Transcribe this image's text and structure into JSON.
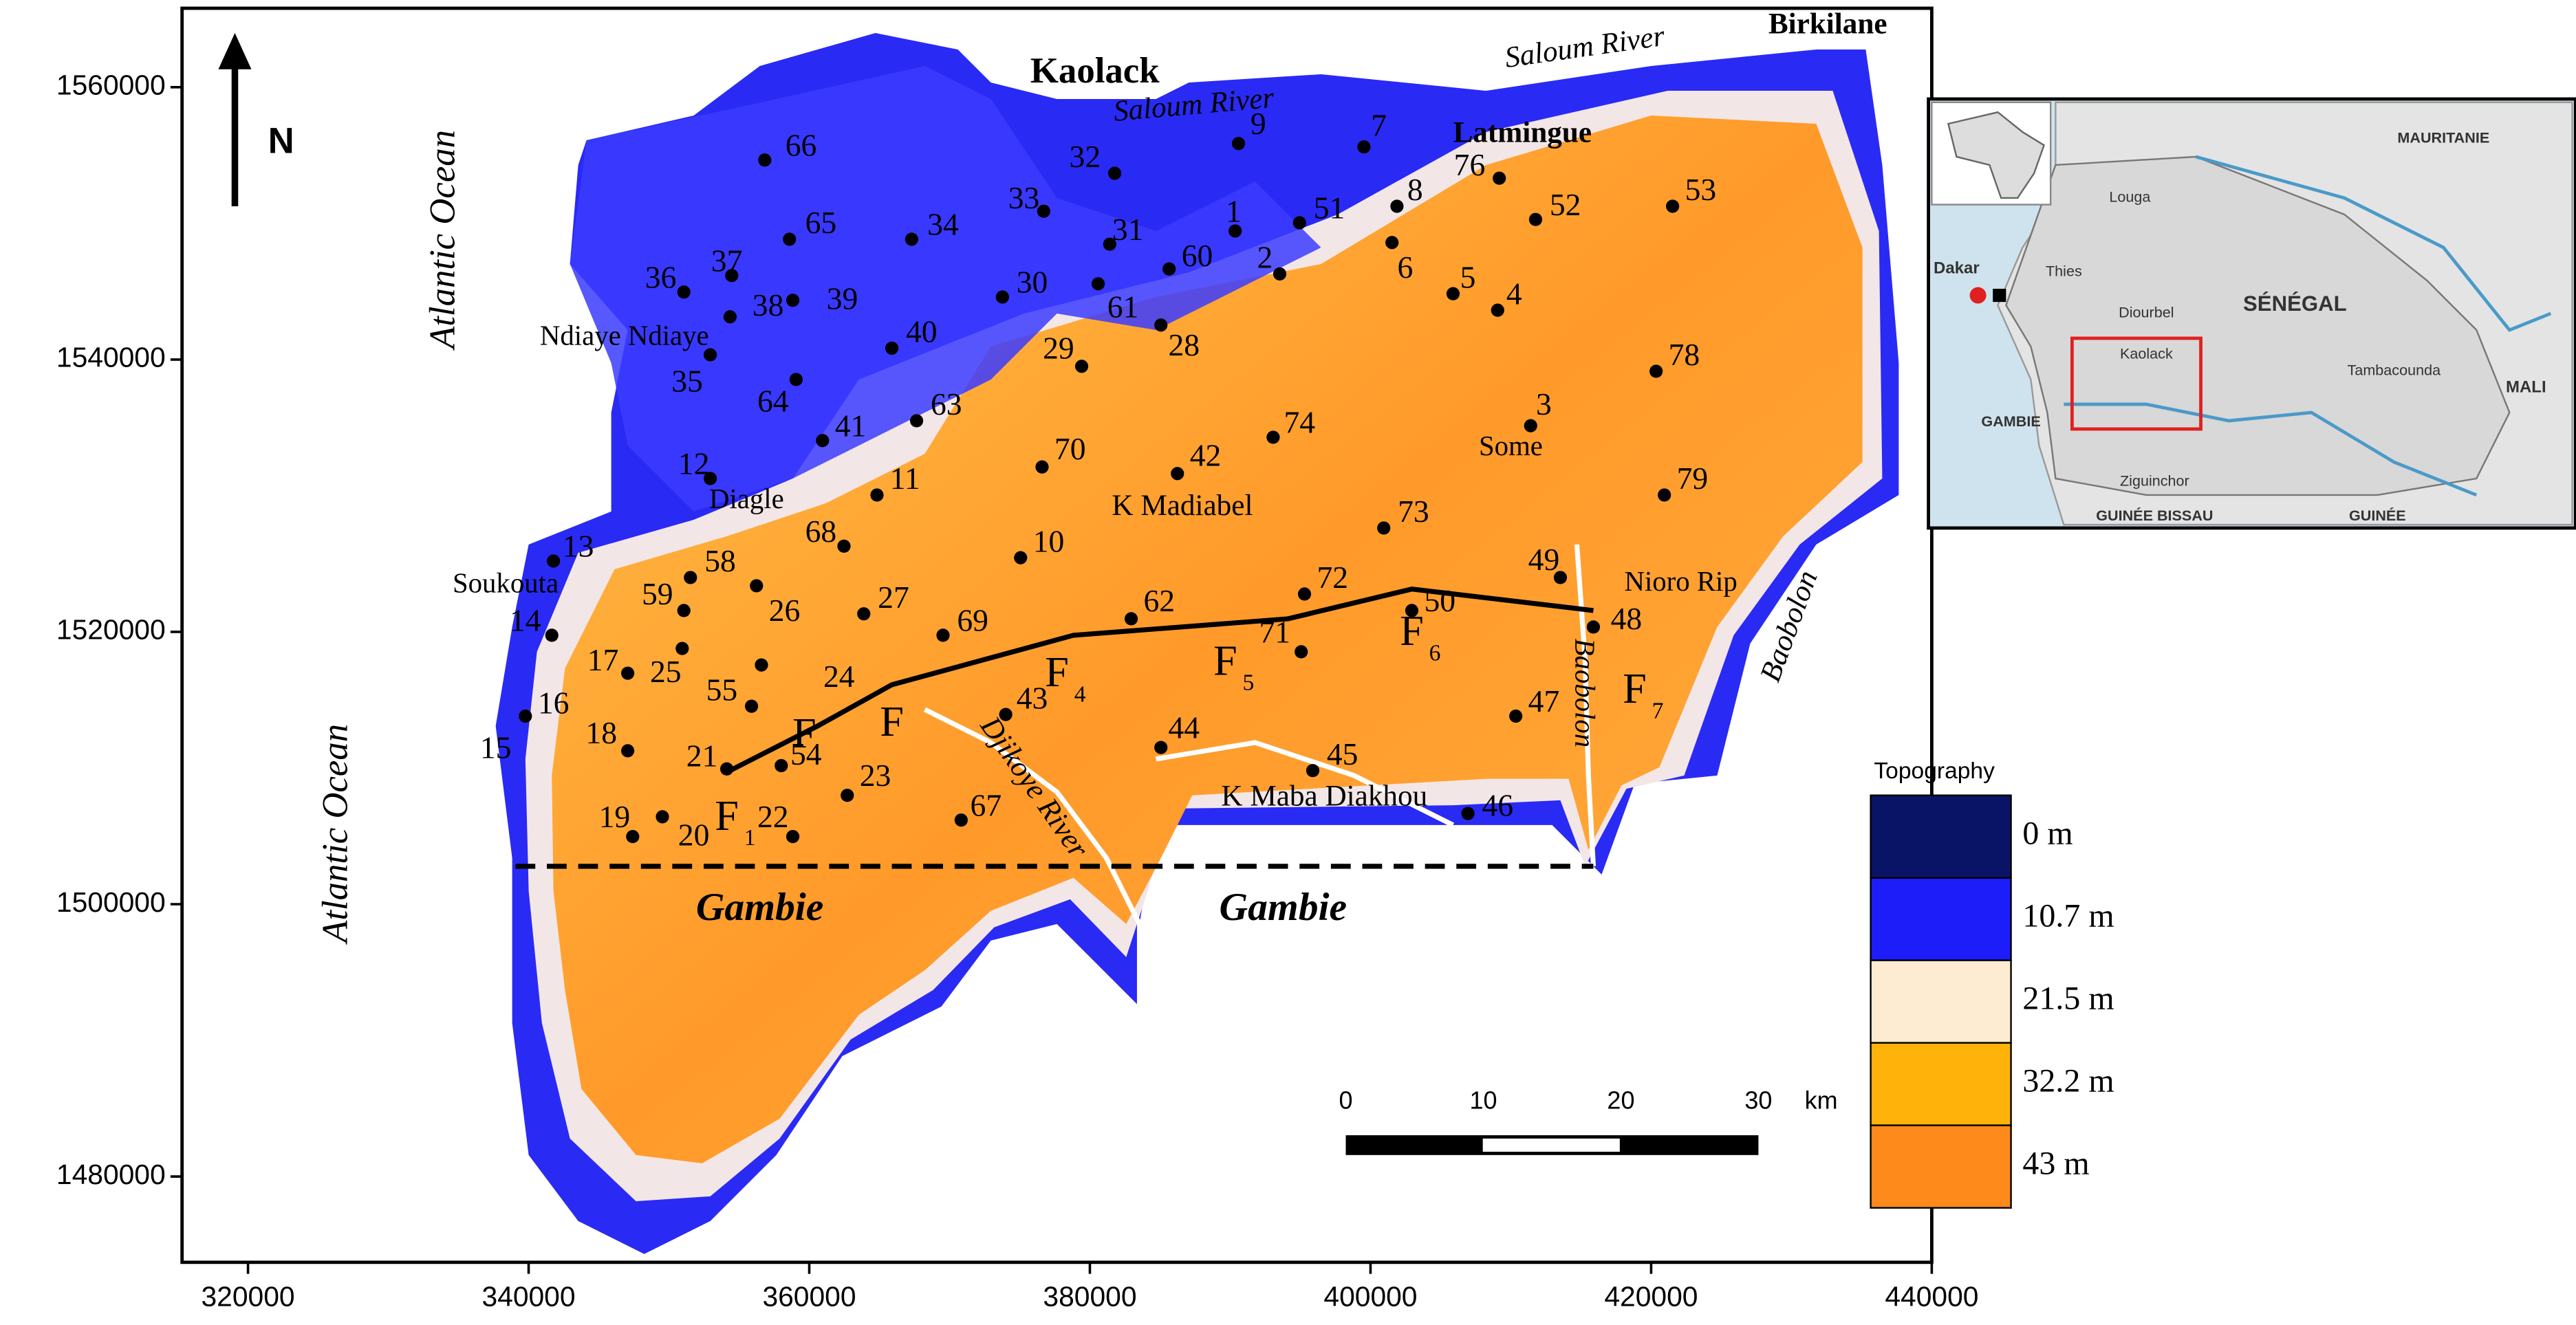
{
  "map": {
    "xlim": [
      315300,
      440000
    ],
    "ylim": [
      1473700,
      1565800
    ],
    "xticks": [
      320000,
      340000,
      360000,
      380000,
      400000,
      420000,
      440000
    ],
    "yticks": [
      1480000,
      1500000,
      1520000,
      1540000,
      1560000
    ],
    "north": "N",
    "places": [
      "Kaolack",
      "Saloum River",
      "Saloum River",
      "Birkilane",
      "Latmingue",
      "Ndiaye Ndiaye",
      "Some",
      "K Madiabel",
      "Diagle",
      "Soukouta",
      "Nioro Rip",
      "Baobolon",
      "Baobolon",
      "K Maba Diakhou",
      "Gambie",
      "Gambie",
      "Djikoye River",
      "Atlantic Ocean",
      "Atlantic Ocean"
    ],
    "wells": [
      "66",
      "32",
      "9",
      "7",
      "76",
      "53",
      "1",
      "51",
      "8",
      "52",
      "65",
      "34",
      "33",
      "31",
      "60",
      "2",
      "6",
      "5",
      "4",
      "36",
      "37",
      "38",
      "39",
      "30",
      "61",
      "28",
      "40",
      "29",
      "78",
      "35",
      "64",
      "63",
      "41",
      "74",
      "3",
      "12",
      "70",
      "42",
      "79",
      "11",
      "73",
      "68",
      "10",
      "13",
      "58",
      "26",
      "62",
      "72",
      "50",
      "49",
      "27",
      "59",
      "69",
      "14",
      "48",
      "17",
      "25",
      "71",
      "24",
      "55",
      "16",
      "43",
      "47",
      "18",
      "44",
      "54",
      "15",
      "21",
      "45",
      "23",
      "46",
      "19",
      "67",
      "20",
      "22"
    ],
    "faults": [
      {
        "name": "F"
      },
      {
        "name": "F"
      },
      {
        "name": "F",
        "sub": "1"
      },
      {
        "name": "F",
        "sub": "4"
      },
      {
        "name": "F",
        "sub": "5"
      },
      {
        "name": "F",
        "sub": "6"
      },
      {
        "name": "F",
        "sub": "7"
      }
    ],
    "scale": {
      "ticks": [
        0,
        10,
        20,
        30
      ],
      "unit": "km"
    },
    "legend": {
      "title": "Topography",
      "items": [
        {
          "label": "0 m",
          "color": "#0a1466"
        },
        {
          "label": "10.7  m",
          "color": "#1d1dfa"
        },
        {
          "label": "21.5 m",
          "color": "#fdecd2"
        },
        {
          "label": "32.2 m",
          "color": "#ffb20a"
        },
        {
          "label": "43 m",
          "color": "#ff8a1c"
        }
      ]
    },
    "inset": {
      "labels": [
        "MAURITANIE",
        "Louga",
        "Dakar",
        "Thies",
        "Diourbel",
        "SÉNÉGAL",
        "Kaolack",
        "Tambacounda",
        "MALI",
        "GAMBIE",
        "Ziguinchor",
        "GUINÉE BISSAU",
        "GUINÉE"
      ]
    }
  }
}
